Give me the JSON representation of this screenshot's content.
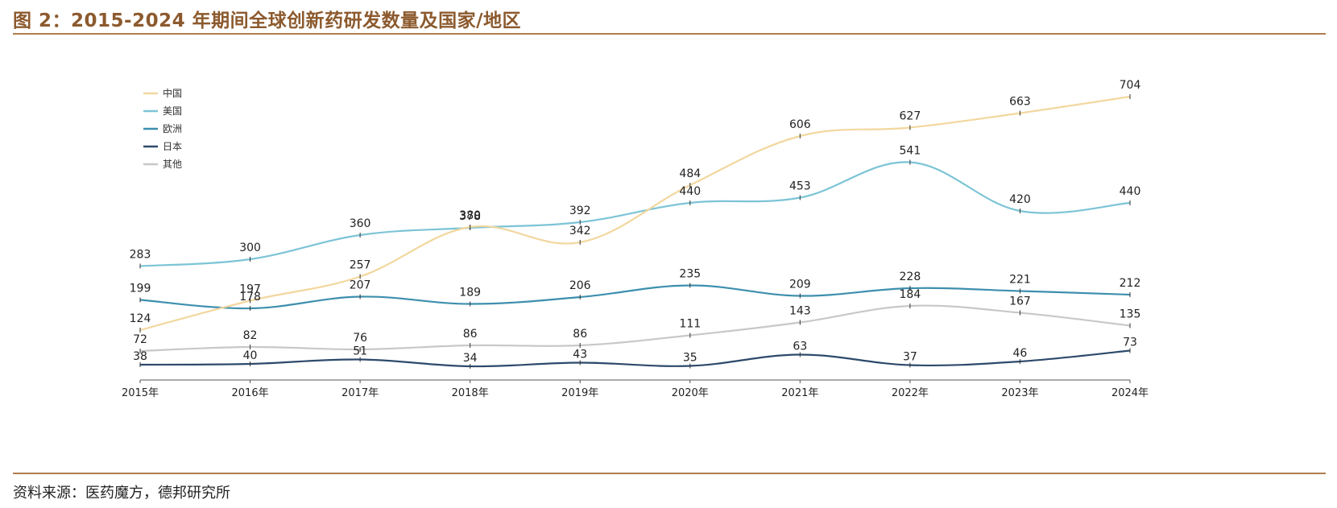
{
  "header": {
    "title": "图 2：2015-2024 年期间全球创新药研发数量及国家/地区"
  },
  "footer": {
    "source": "资料来源：医药魔方，德邦研究所"
  },
  "chart_data": {
    "type": "line",
    "title": "",
    "xlabel": "",
    "ylabel": "",
    "ylim": [
      0,
      720
    ],
    "grid": false,
    "legend_position": "top-left",
    "categories": [
      "2015年",
      "2016年",
      "2017年",
      "2018年",
      "2019年",
      "2020年",
      "2021年",
      "2022年",
      "2023年",
      "2024年"
    ],
    "series": [
      {
        "name": "中国",
        "color": "#f2d79e",
        "values": [
          124,
          197,
          257,
          380,
          342,
          484,
          606,
          627,
          663,
          704
        ]
      },
      {
        "name": "美国",
        "color": "#7cc4d6",
        "values": [
          283,
          300,
          360,
          378,
          392,
          440,
          453,
          541,
          420,
          440
        ]
      },
      {
        "name": "欧洲",
        "color": "#3d8fae",
        "values": [
          199,
          178,
          207,
          189,
          206,
          235,
          209,
          228,
          221,
          212
        ]
      },
      {
        "name": "日本",
        "color": "#2d4a6b",
        "values": [
          38,
          40,
          51,
          34,
          43,
          35,
          63,
          37,
          46,
          73
        ]
      },
      {
        "name": "其他",
        "color": "#c8c8c8",
        "values": [
          72,
          82,
          76,
          86,
          86,
          111,
          143,
          184,
          167,
          135
        ]
      }
    ]
  }
}
